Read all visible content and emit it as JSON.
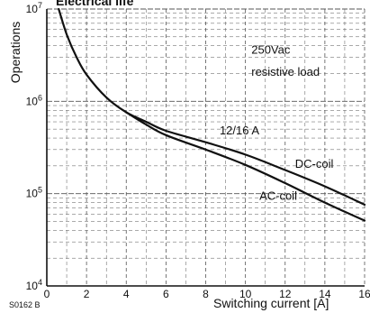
{
  "chart_data": {
    "type": "line",
    "title": "Electrical life",
    "figure_code": "S0162 B",
    "xlabel": "Switching current [A]",
    "ylabel": "Operations",
    "xlim": [
      0,
      16
    ],
    "ylim": [
      10000,
      10000000
    ],
    "y_scale": "log",
    "grid": true,
    "x_ticks": [
      0,
      2,
      4,
      6,
      8,
      10,
      12,
      14,
      16
    ],
    "x_tick_labels": [
      "0",
      "2",
      "4",
      "6",
      "8",
      "10",
      "12",
      "14",
      "16"
    ],
    "y_ticks": [
      10000,
      100000,
      1000000,
      10000000
    ],
    "y_tick_labels": [
      {
        "base": "10",
        "exp": "4"
      },
      {
        "base": "10",
        "exp": "5"
      },
      {
        "base": "10",
        "exp": "6"
      },
      {
        "base": "10",
        "exp": "7"
      }
    ],
    "series": [
      {
        "name": "DC-coil",
        "x": [
          0.6,
          1,
          1.5,
          2,
          3,
          4,
          5,
          6,
          8,
          10,
          12,
          14,
          16
        ],
        "y": [
          10000000,
          5300000,
          3000000,
          1950000,
          1100000,
          760000,
          600000,
          480000,
          360000,
          265000,
          180000,
          120000,
          76000
        ]
      },
      {
        "name": "AC-coil",
        "x": [
          4,
          5,
          6,
          8,
          10,
          12,
          14,
          16
        ],
        "y": [
          760000,
          560000,
          430000,
          300000,
          205000,
          130000,
          80000,
          51000
        ]
      }
    ],
    "annotations": [
      {
        "text": "250Vac",
        "x": 10.3,
        "y": 3300000
      },
      {
        "text": "resistive load",
        "x": 10.3,
        "y": 1900000
      },
      {
        "text": "12/16 A",
        "x": 8.7,
        "y": 440000
      },
      {
        "text": "DC-coil",
        "x": 12.5,
        "y": 190000
      },
      {
        "text": "AC-coil",
        "x": 10.7,
        "y": 86000
      }
    ]
  }
}
